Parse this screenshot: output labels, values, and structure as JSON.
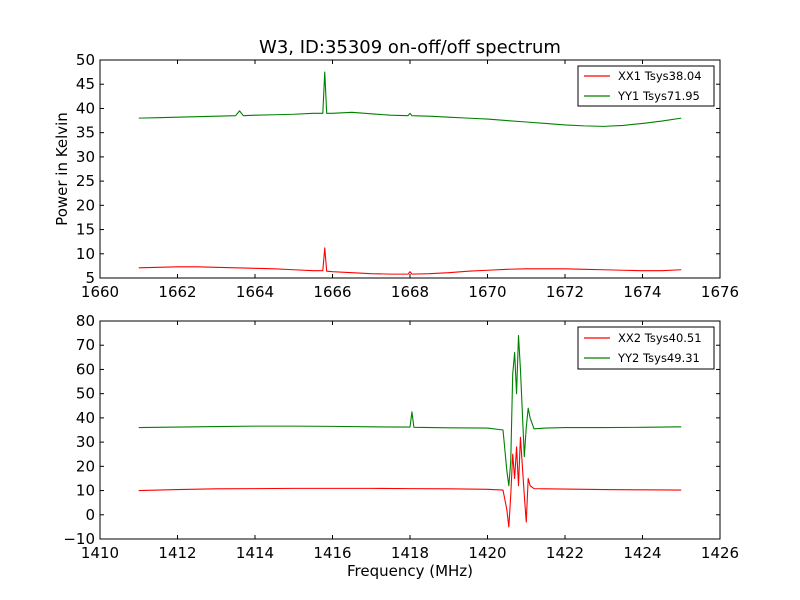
{
  "chart_data": [
    {
      "type": "line",
      "title": "W3, ID:35309 on-off/off spectrum",
      "xlabel": "",
      "ylabel": "Power in Kelvin",
      "xlim": [
        1660,
        1676
      ],
      "ylim": [
        5,
        50
      ],
      "xticks": [
        "1660",
        "1662",
        "1664",
        "1666",
        "1668",
        "1670",
        "1672",
        "1674",
        "1676"
      ],
      "yticks": [
        "5",
        "10",
        "15",
        "20",
        "25",
        "30",
        "35",
        "40",
        "45",
        "50"
      ],
      "legend_position": "top-right",
      "series": [
        {
          "name": "XX1 Tsys38.04",
          "color": "#ff0000",
          "x": [
            1661.0,
            1661.5,
            1662.0,
            1662.5,
            1663.0,
            1663.5,
            1664.0,
            1664.5,
            1665.0,
            1665.5,
            1665.75,
            1665.8,
            1665.85,
            1666.0,
            1666.5,
            1667.0,
            1667.5,
            1667.95,
            1668.0,
            1668.05,
            1668.5,
            1669.0,
            1669.5,
            1670.0,
            1670.5,
            1671.0,
            1671.5,
            1672.0,
            1672.5,
            1673.0,
            1673.5,
            1674.0,
            1674.5,
            1675.0
          ],
          "values": [
            7.1,
            7.2,
            7.3,
            7.3,
            7.2,
            7.1,
            7.0,
            6.9,
            6.7,
            6.5,
            6.5,
            11.2,
            6.4,
            6.3,
            6.1,
            5.9,
            5.8,
            5.8,
            6.3,
            5.8,
            5.9,
            6.1,
            6.4,
            6.6,
            6.8,
            6.9,
            6.9,
            6.9,
            6.8,
            6.7,
            6.6,
            6.5,
            6.5,
            6.7
          ]
        },
        {
          "name": "YY1 Tsys71.95",
          "color": "#008000",
          "x": [
            1661.0,
            1661.5,
            1662.0,
            1662.5,
            1663.0,
            1663.5,
            1663.6,
            1663.7,
            1664.0,
            1664.5,
            1665.0,
            1665.5,
            1665.75,
            1665.8,
            1665.85,
            1666.0,
            1666.5,
            1667.0,
            1667.5,
            1667.95,
            1668.0,
            1668.05,
            1668.5,
            1669.0,
            1669.5,
            1670.0,
            1670.5,
            1671.0,
            1671.5,
            1672.0,
            1672.5,
            1673.0,
            1673.5,
            1674.0,
            1674.5,
            1675.0
          ],
          "values": [
            38.0,
            38.1,
            38.2,
            38.3,
            38.4,
            38.5,
            39.5,
            38.5,
            38.6,
            38.7,
            38.8,
            39.0,
            39.0,
            47.5,
            39.0,
            39.0,
            39.2,
            38.9,
            38.6,
            38.5,
            39.0,
            38.5,
            38.4,
            38.2,
            38.0,
            37.8,
            37.5,
            37.2,
            36.9,
            36.6,
            36.4,
            36.3,
            36.5,
            36.9,
            37.4,
            38.0
          ]
        }
      ]
    },
    {
      "type": "line",
      "title": "",
      "xlabel": "Frequency (MHz)",
      "ylabel": "",
      "xlim": [
        1410,
        1426
      ],
      "ylim": [
        -10,
        80
      ],
      "xticks": [
        "1410",
        "1412",
        "1414",
        "1416",
        "1418",
        "1420",
        "1422",
        "1424",
        "1426"
      ],
      "yticks": [
        "−10",
        "0",
        "10",
        "20",
        "30",
        "40",
        "50",
        "60",
        "70",
        "80"
      ],
      "legend_position": "top-right",
      "series": [
        {
          "name": "XX2 Tsys40.51",
          "color": "#ff0000",
          "x": [
            1411.0,
            1412.0,
            1413.0,
            1414.0,
            1415.0,
            1416.0,
            1417.0,
            1418.0,
            1419.0,
            1420.0,
            1420.4,
            1420.5,
            1420.55,
            1420.6,
            1420.65,
            1420.7,
            1420.75,
            1420.8,
            1420.85,
            1420.9,
            1420.95,
            1421.0,
            1421.05,
            1421.1,
            1421.2,
            1421.5,
            1422.0,
            1423.0,
            1424.0,
            1425.0
          ],
          "values": [
            10.0,
            10.4,
            10.7,
            10.8,
            10.9,
            10.9,
            10.9,
            10.8,
            10.7,
            10.5,
            10.2,
            2.0,
            -5.0,
            8.0,
            25.0,
            15.0,
            28.0,
            12.0,
            32.0,
            20.0,
            8.0,
            -3.0,
            15.0,
            12.0,
            10.8,
            10.7,
            10.6,
            10.4,
            10.3,
            10.2
          ]
        },
        {
          "name": "YY2 Tsys49.31",
          "color": "#008000",
          "x": [
            1411.0,
            1412.0,
            1413.0,
            1414.0,
            1415.0,
            1416.0,
            1417.0,
            1418.0,
            1418.05,
            1418.1,
            1419.0,
            1420.0,
            1420.4,
            1420.5,
            1420.55,
            1420.6,
            1420.65,
            1420.7,
            1420.75,
            1420.8,
            1420.85,
            1420.9,
            1420.95,
            1421.0,
            1421.05,
            1421.1,
            1421.2,
            1421.5,
            1422.0,
            1423.0,
            1424.0,
            1425.0
          ],
          "values": [
            36.0,
            36.2,
            36.4,
            36.6,
            36.6,
            36.5,
            36.3,
            36.2,
            42.5,
            36.1,
            35.9,
            35.8,
            35.0,
            18.0,
            12.0,
            22.0,
            58.0,
            67.0,
            50.0,
            74.0,
            60.0,
            42.0,
            24.0,
            36.0,
            44.0,
            40.0,
            35.5,
            35.8,
            36.0,
            36.0,
            36.1,
            36.3
          ]
        }
      ]
    }
  ]
}
